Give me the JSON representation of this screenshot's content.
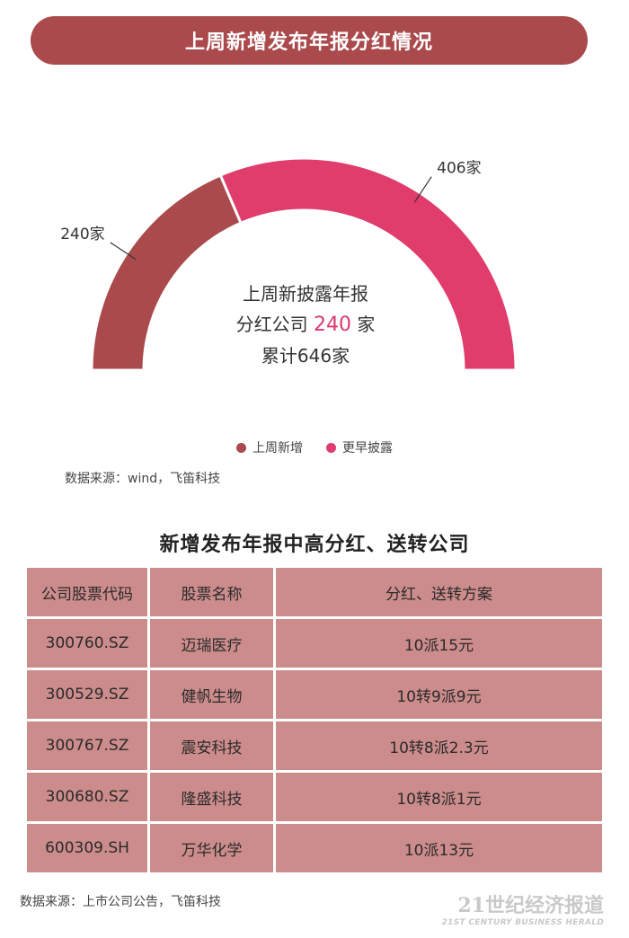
{
  "banner_title": "上周新增发布年报分红情况",
  "chart_data": {
    "type": "pie",
    "variant": "half-donut",
    "slices": [
      {
        "label": "上周新增",
        "value": 240,
        "value_label": "240家",
        "color": "#ab4a4c"
      },
      {
        "label": "更早披露",
        "value": 406,
        "value_label": "406家",
        "color": "#e03c6c"
      }
    ],
    "legend_placement": "bottom"
  },
  "center": {
    "line1": "上周新披露年报",
    "line2_prefix": "分红公司",
    "line2_number": "240",
    "line2_suffix": "家",
    "line3": "累计646家"
  },
  "source_1": "数据来源：wind，飞笛科技",
  "table_title": "新增发布年报中高分红、送转公司",
  "table": {
    "headers": [
      "公司股票代码",
      "股票名称",
      "分红、送转方案"
    ],
    "rows": [
      [
        "300760.SZ",
        "迈瑞医疗",
        "10派15元"
      ],
      [
        "300529.SZ",
        "健帆生物",
        "10转9派9元"
      ],
      [
        "300767.SZ",
        "震安科技",
        "10转8派2.3元"
      ],
      [
        "300680.SZ",
        "隆盛科技",
        "10转8派1元"
      ],
      [
        "600309.SH",
        "万华化学",
        "10派13元"
      ]
    ]
  },
  "source_2": "数据来源：上市公司公告，飞笛科技",
  "watermark": {
    "main": "21世纪经济报道",
    "sub": "21ST CENTURY BUSINESS HERALD"
  }
}
